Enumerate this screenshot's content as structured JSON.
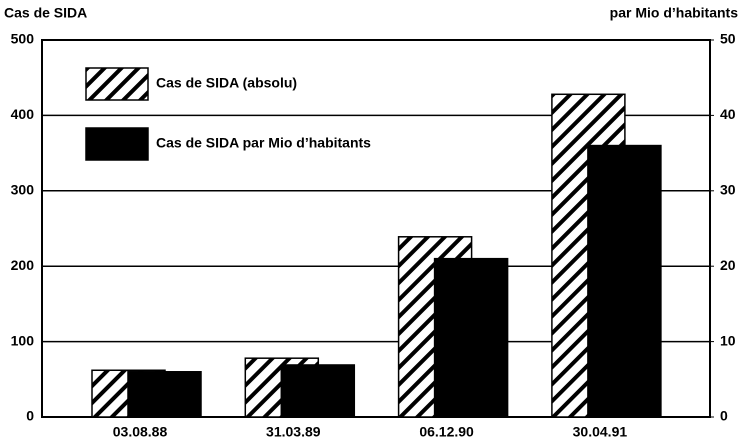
{
  "chart_data": {
    "type": "bar",
    "y_label": "Cas de SIDA",
    "y2_label": "par Mio d’habitants",
    "categories": [
      "03.08.88",
      "31.03.89",
      "06.12.90",
      "30.04.91"
    ],
    "series": [
      {
        "name": "Cas de SIDA (absolu)",
        "color": "#000000",
        "pattern": "hatch",
        "values": [
          62,
          78,
          239,
          428
        ]
      },
      {
        "name": "Cas de SIDA par Mio d’habitants",
        "color": "#000000",
        "pattern": "solid",
        "axis": "y2",
        "values": [
          6.0,
          6.9,
          21,
          36
        ]
      }
    ],
    "ylim": [
      0,
      500
    ],
    "yticks": [
      0,
      100,
      200,
      300,
      400,
      500
    ],
    "y2lim": [
      0,
      50
    ],
    "y2ticks": [
      0,
      10,
      20,
      30,
      40,
      50
    ],
    "grid": true,
    "legend": "upper left"
  }
}
